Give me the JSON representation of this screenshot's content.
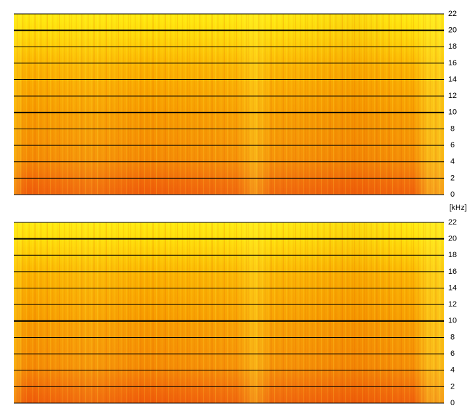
{
  "chart_data": [
    {
      "type": "spectrogram",
      "ylabel": "[kHz]",
      "ylim": [
        0,
        22
      ],
      "yticks": [
        0,
        2,
        4,
        6,
        8,
        10,
        12,
        14,
        16,
        18,
        20,
        22
      ]
    },
    {
      "type": "spectrogram",
      "ylim": [
        0,
        22
      ],
      "yticks": [
        0,
        2,
        4,
        6,
        8,
        10,
        12,
        14,
        16,
        18,
        20,
        22
      ]
    }
  ]
}
